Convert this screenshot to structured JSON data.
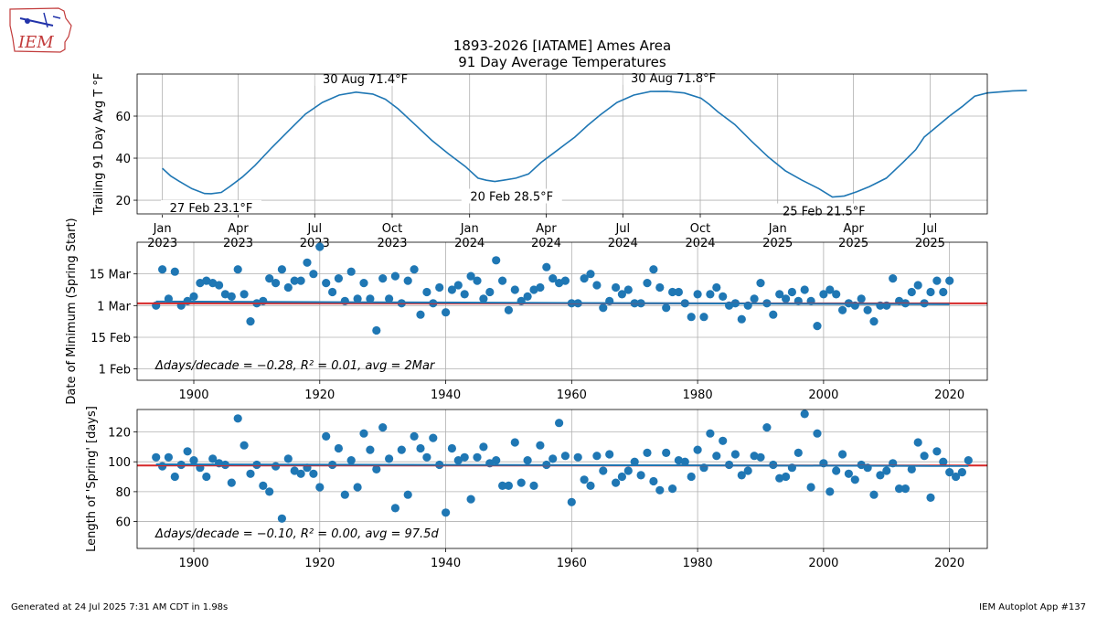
{
  "logo": {
    "text": "IEM"
  },
  "title": {
    "line1": "1893-2026 [IATAME] Ames Area",
    "line2": "91 Day Average Temperatures"
  },
  "footer": {
    "left": "Generated at 24 Jul 2025 7:31 AM CDT in 1.98s",
    "right": "IEM Autoplot App #137"
  },
  "colors": {
    "series": "#1f77b4",
    "mean": "#d62728",
    "grid": "#b0b0b0"
  },
  "chart_data": [
    {
      "type": "line",
      "title": "1893-2026 [IATAME] Ames Area — 91 Day Average Temperatures",
      "ylabel": "Trailing 91 Day Avg T °F",
      "ylim": [
        13.5,
        80
      ],
      "yticks": [
        20,
        40,
        60
      ],
      "xlim_days": [
        -30,
        980
      ],
      "x_origin": "2023-01-01",
      "xticks": [
        {
          "day": 0,
          "label": "Jan",
          "year": "2023"
        },
        {
          "day": 90,
          "label": "Apr",
          "year": "2023"
        },
        {
          "day": 181,
          "label": "Jul",
          "year": "2023"
        },
        {
          "day": 273,
          "label": "Oct",
          "year": "2023"
        },
        {
          "day": 365,
          "label": "Jan",
          "year": "2024"
        },
        {
          "day": 456,
          "label": "Apr",
          "year": "2024"
        },
        {
          "day": 547,
          "label": "Jul",
          "year": "2024"
        },
        {
          "day": 639,
          "label": "Oct",
          "year": "2024"
        },
        {
          "day": 731,
          "label": "Jan",
          "year": "2025"
        },
        {
          "day": 821,
          "label": "Apr",
          "year": "2025"
        },
        {
          "day": 912,
          "label": "Jul",
          "year": "2025"
        }
      ],
      "x": [
        0,
        10,
        20,
        35,
        50,
        58,
        70,
        80,
        95,
        110,
        130,
        150,
        170,
        190,
        210,
        230,
        250,
        265,
        280,
        300,
        320,
        340,
        360,
        375,
        385,
        395,
        405,
        420,
        435,
        450,
        465,
        480,
        490,
        505,
        520,
        540,
        560,
        580,
        600,
        620,
        640,
        650,
        660,
        680,
        700,
        720,
        740,
        760,
        780,
        796,
        810,
        825,
        840,
        860,
        880,
        895,
        905,
        920,
        935,
        950,
        965,
        980,
        995,
        1010,
        1027
      ],
      "values": [
        35.2,
        31.5,
        29.0,
        25.5,
        23.2,
        23.1,
        23.7,
        26.5,
        31.0,
        36.5,
        45.0,
        53.0,
        61.0,
        66.5,
        70.0,
        71.4,
        70.5,
        68.0,
        63.5,
        56.0,
        48.5,
        42.0,
        36.0,
        30.5,
        29.5,
        28.9,
        29.5,
        30.5,
        32.5,
        38.0,
        42.5,
        47.0,
        50.0,
        55.5,
        60.5,
        66.5,
        70.0,
        71.7,
        71.8,
        71.0,
        68.5,
        65.5,
        62.0,
        56.0,
        48.0,
        40.5,
        34.0,
        29.5,
        25.5,
        21.5,
        22.0,
        24.0,
        26.5,
        30.5,
        38.0,
        44.0,
        50.0,
        55.0,
        60.0,
        64.5,
        69.5,
        71.0,
        71.5,
        72.0,
        72.2
      ],
      "annotations": [
        {
          "day": 58,
          "value": 23.1,
          "text": "27 Feb 23.1°F",
          "pos": "below"
        },
        {
          "day": 241,
          "value": 71.4,
          "text": "30 Aug 71.4°F",
          "pos": "above"
        },
        {
          "day": 415,
          "value": 28.5,
          "text": "20 Feb 28.5°F",
          "pos": "below"
        },
        {
          "day": 607,
          "value": 71.8,
          "text": "30 Aug 71.8°F",
          "pos": "above"
        },
        {
          "day": 786,
          "value": 21.5,
          "text": "25 Feb 21.5°F",
          "pos": "below"
        }
      ]
    },
    {
      "type": "scatter",
      "ylabel": "Date of Minimum (Spring Start)",
      "xlim": [
        1891,
        2026
      ],
      "ylim_doy": [
        -4,
        57
      ],
      "ytick_labels": [
        {
          "v": 1,
          "label": "1 Feb"
        },
        {
          "v": 15,
          "label": "15 Feb"
        },
        {
          "v": 29,
          "label": "1 Mar"
        },
        {
          "v": 43,
          "label": "15 Mar"
        }
      ],
      "xticks": [
        1900,
        1920,
        1940,
        1960,
        1980,
        2000,
        2020
      ],
      "x_start": 1894,
      "values": [
        29,
        45,
        32,
        44,
        29,
        31,
        33,
        39,
        40,
        39,
        38,
        34,
        33,
        45,
        34,
        22,
        30,
        31,
        41,
        39,
        45,
        37,
        40,
        40,
        48,
        43,
        55,
        39,
        35,
        41,
        31,
        44,
        32,
        39,
        32,
        18,
        41,
        32,
        42,
        30,
        40,
        45,
        25,
        35,
        30,
        37,
        26,
        36,
        38,
        34,
        42,
        40,
        32,
        35,
        49,
        40,
        27,
        36,
        31,
        33,
        36,
        37,
        46,
        41,
        39,
        40,
        30,
        30,
        41,
        43,
        38,
        28,
        31,
        37,
        34,
        36,
        30,
        30,
        39,
        45,
        37,
        28,
        35,
        35,
        30,
        24,
        34,
        24,
        34,
        37,
        33,
        29,
        30,
        23,
        29,
        32,
        39,
        30,
        25,
        34,
        32,
        35,
        31,
        36,
        31,
        20,
        34,
        36,
        34,
        27,
        30,
        29,
        32,
        27,
        22,
        29,
        29,
        41,
        31,
        30,
        35,
        38,
        30,
        35,
        40,
        35,
        40
      ],
      "fit": {
        "start": 30.8,
        "end": 29.6
      },
      "mean_line": 30.0,
      "annotation": "Δdays/decade = −0.28, R² = 0.01, avg = 2Mar"
    },
    {
      "type": "scatter",
      "ylabel": "Length of 'Spring' [days]",
      "xlim": [
        1891,
        2026
      ],
      "ylim": [
        42,
        135
      ],
      "yticks": [
        60,
        80,
        100,
        120
      ],
      "xticks": [
        1900,
        1920,
        1940,
        1960,
        1980,
        2000,
        2020
      ],
      "x_start": 1894,
      "values": [
        103,
        97,
        103,
        90,
        98,
        107,
        101,
        96,
        90,
        102,
        99,
        98,
        86,
        129,
        111,
        92,
        98,
        84,
        80,
        97,
        62,
        102,
        94,
        92,
        96,
        92,
        83,
        117,
        98,
        109,
        78,
        101,
        83,
        119,
        108,
        95,
        123,
        102,
        69,
        108,
        78,
        117,
        109,
        103,
        116,
        98,
        66,
        109,
        101,
        103,
        75,
        103,
        110,
        99,
        101,
        84,
        84,
        113,
        86,
        101,
        84,
        111,
        98,
        102,
        126,
        104,
        73,
        103,
        88,
        84,
        104,
        94,
        105,
        86,
        90,
        94,
        100,
        91,
        106,
        87,
        81,
        106,
        82,
        101,
        100,
        90,
        108,
        96,
        119,
        104,
        114,
        98,
        105,
        91,
        94,
        104,
        103,
        123,
        98,
        89,
        90,
        96,
        106,
        132,
        83,
        119,
        99,
        80,
        94,
        105,
        92,
        88,
        98,
        96,
        78,
        91,
        94,
        99,
        82,
        82,
        95,
        113,
        104,
        76,
        107,
        100,
        93,
        90,
        93,
        101
      ],
      "fit": {
        "start": 98.3,
        "end": 97.2
      },
      "mean_line": 97.5,
      "annotation": "Δdays/decade = −0.10, R² = 0.00, avg = 97.5d"
    }
  ]
}
